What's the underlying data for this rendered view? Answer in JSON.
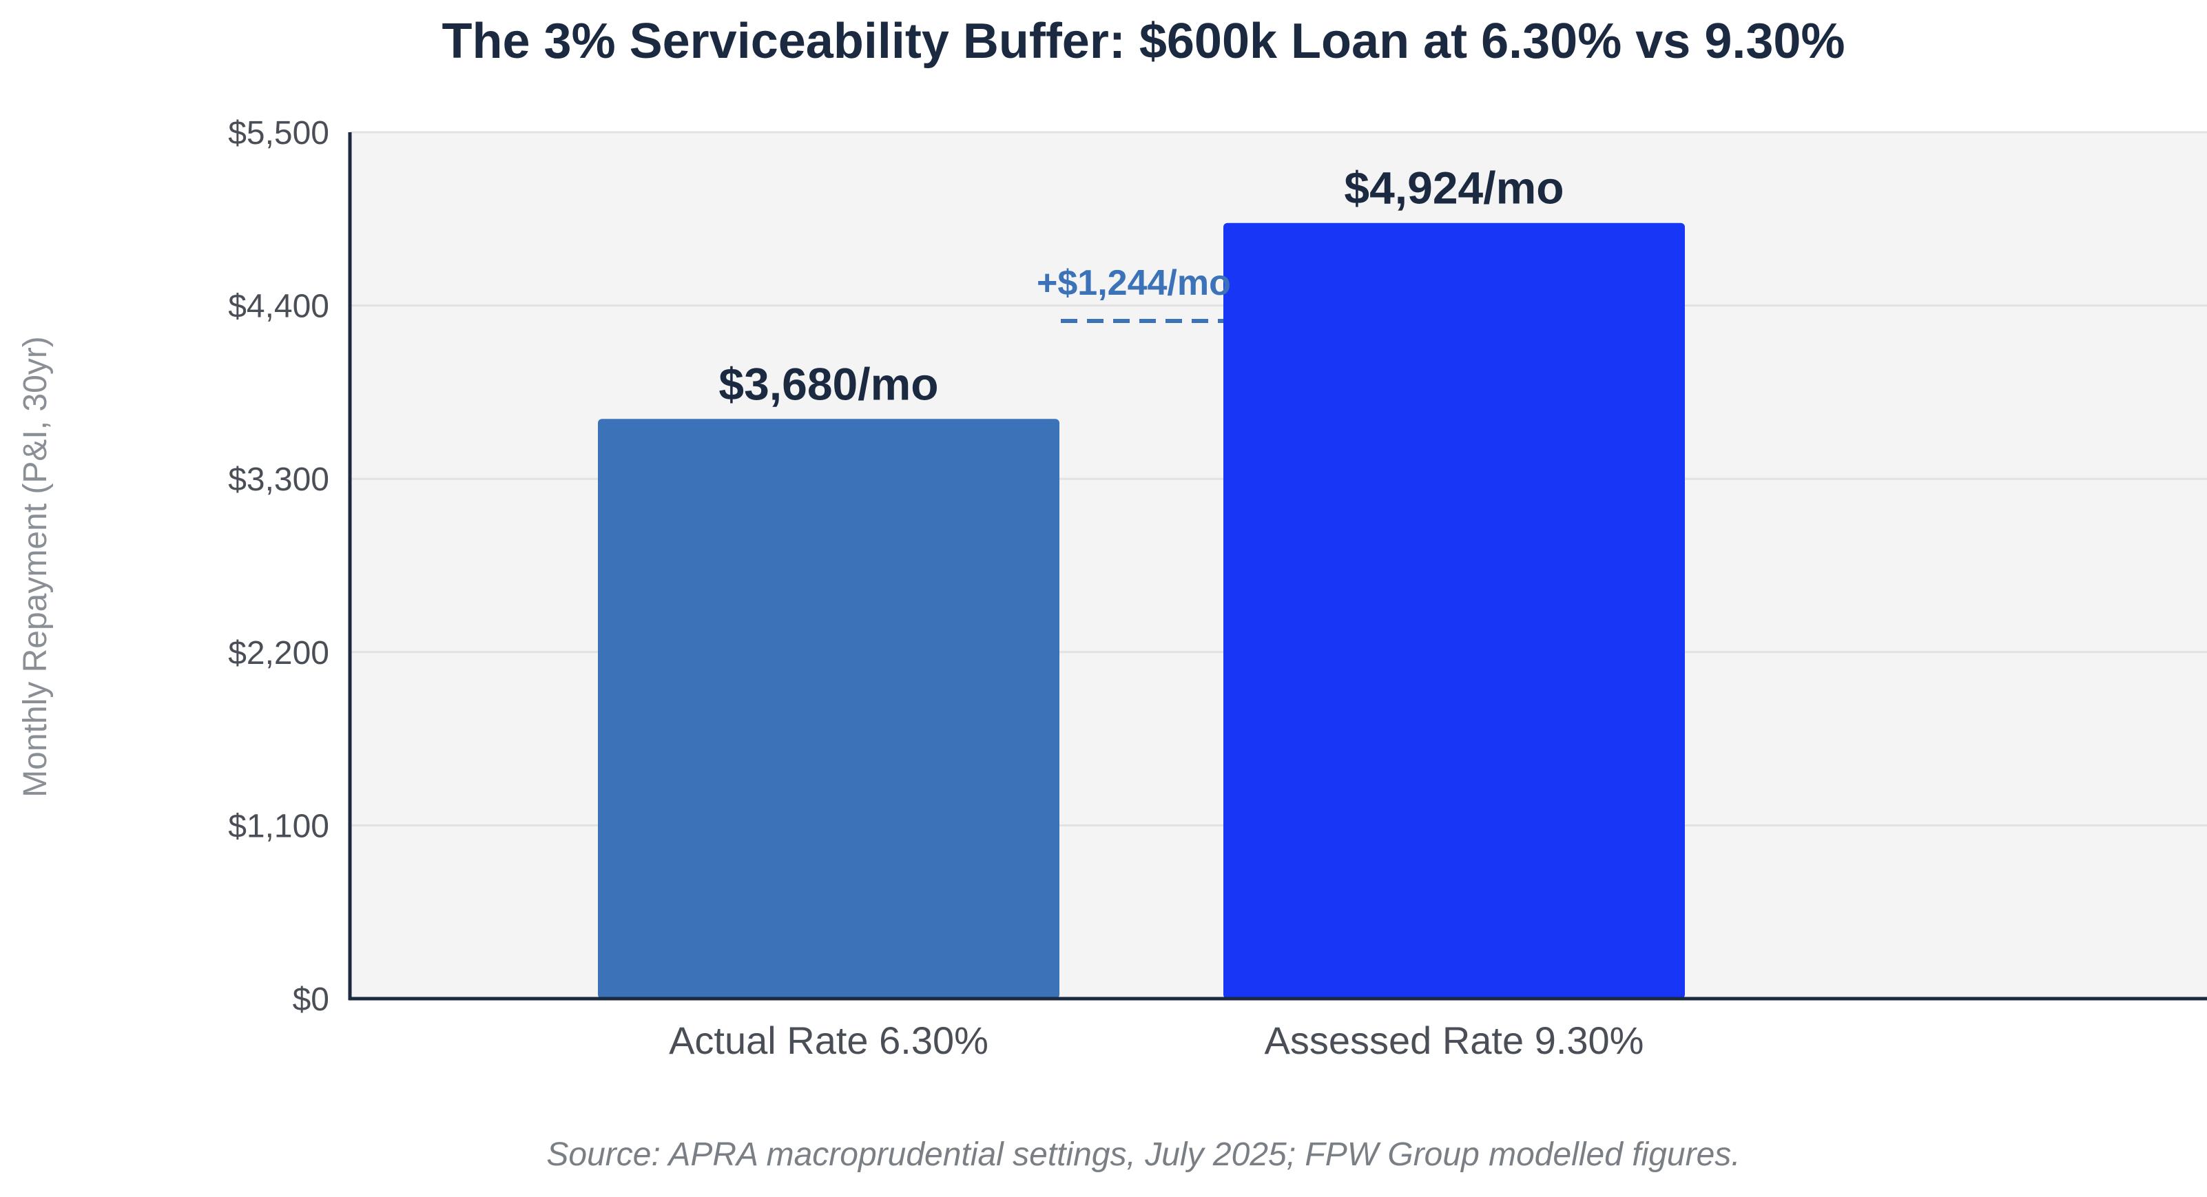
{
  "chart_data": {
    "type": "bar",
    "title": "The 3% Serviceability Buffer: $600k Loan at 6.30% vs 9.30%",
    "ylabel": "Monthly Repayment (P&I, 30yr)",
    "xlabel": "",
    "categories": [
      "Actual Rate 6.30%",
      "Assessed Rate 9.30%"
    ],
    "values": [
      3680,
      4924
    ],
    "data_labels": [
      "$3,680/mo",
      "$4,924/mo"
    ],
    "bar_colors": [
      "#3b72b8",
      "#1836f5"
    ],
    "y_ticks": [
      {
        "value": 0,
        "label": "$0"
      },
      {
        "value": 1100,
        "label": "$1,100"
      },
      {
        "value": 2200,
        "label": "$2,200"
      },
      {
        "value": 3300,
        "label": "$3,300"
      },
      {
        "value": 4400,
        "label": "$4,400"
      },
      {
        "value": 5500,
        "label": "$5,500"
      }
    ],
    "grid": true,
    "annotation": {
      "text": "+$1,244/mo",
      "color": "#3b72b8"
    },
    "source": "Source: APRA macroprudential settings, July 2025; FPW Group modelled figures."
  }
}
